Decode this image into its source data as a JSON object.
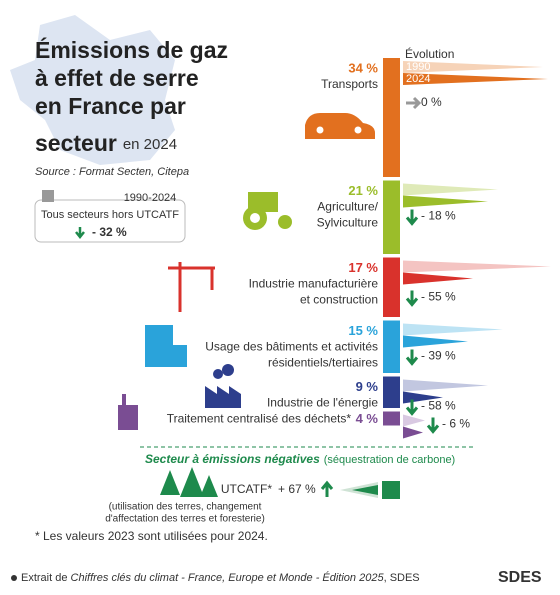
{
  "header": {
    "title_lines": [
      "Émissions de gaz",
      "à effet de serre",
      "en France par",
      "secteur"
    ],
    "title_suffix": "en 2024",
    "source": "Source : Format Secten, Citepa"
  },
  "summary": {
    "period": "1990-2024",
    "label": "Tous secteurs hors UTCATF",
    "change": {
      "value": -32,
      "label": "- 32 %"
    }
  },
  "legend": {
    "title": "Évolution",
    "start": "1990",
    "end": "2024"
  },
  "sectors": [
    {
      "name": [
        "Transports"
      ],
      "share": {
        "value": 34,
        "label": "34 %"
      },
      "change": {
        "value": 0,
        "label": "0 %"
      },
      "color": "#e2701f",
      "light": "#f6d3b8"
    },
    {
      "name": [
        "Agriculture/",
        "Sylviculture"
      ],
      "share": {
        "value": 21,
        "label": "21 %"
      },
      "change": {
        "value": -18,
        "label": "- 18 %"
      },
      "color": "#9bbd2a",
      "light": "#dfeab8"
    },
    {
      "name": [
        "Industrie manufacturière",
        "et construction"
      ],
      "share": {
        "value": 17,
        "label": "17 %"
      },
      "change": {
        "value": -55,
        "label": "- 55 %"
      },
      "color": "#d9322c",
      "light": "#f4c4c2"
    },
    {
      "name": [
        "Usage des bâtiments et activités",
        "résidentiels/tertiaires"
      ],
      "share": {
        "value": 15,
        "label": "15 %"
      },
      "change": {
        "value": -39,
        "label": "- 39 %"
      },
      "color": "#2aa3da",
      "light": "#bde3f4"
    },
    {
      "name": [
        "Industrie de l'énergie"
      ],
      "share": {
        "value": 9,
        "label": "9 %"
      },
      "change": {
        "value": -58,
        "label": "- 58 %"
      },
      "color": "#2d3e8c",
      "light": "#c2c7e0"
    },
    {
      "name": [
        "Traitement centralisé des déchets*"
      ],
      "share": {
        "value": 4,
        "label": "4 %"
      },
      "change": {
        "value": -6,
        "label": "- 6 %"
      },
      "color": "#7a4d93",
      "light": "#d9c9e2"
    }
  ],
  "negative": {
    "title": "Secteur à émissions négatives",
    "subtitle": "(séquestration de carbone)",
    "name": "UTCATF*",
    "change": {
      "value": 67,
      "label": "+ 67 %"
    },
    "note": [
      "(utilisation des terres, changement",
      "d'affectation des terres et foresterie)"
    ],
    "color": "#1e8a4c"
  },
  "footnote": "* Les valeurs 2023 sont utilisées pour 2024.",
  "footer": {
    "prefix": "Extrait de ",
    "italic": "Chiffres clés du climat - France, Europe et Monde - Édition 2025",
    "suffix": ", SDES",
    "logo": "SDES"
  }
}
